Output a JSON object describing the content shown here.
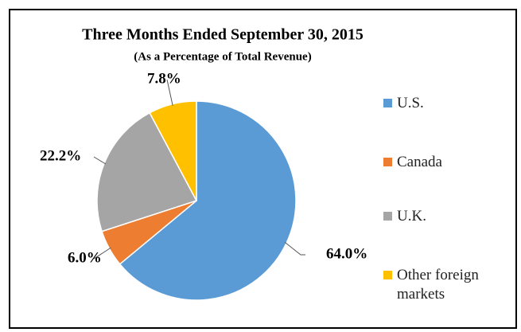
{
  "chart_data": {
    "type": "pie",
    "title": "Three Months Ended  September 30, 2015",
    "subtitle": "(As a Percentage of Total Revenue)",
    "categories": [
      "U.S.",
      "Canada",
      "U.K.",
      "Other foreign markets"
    ],
    "values": [
      64.0,
      6.0,
      22.2,
      7.8
    ],
    "value_labels": [
      "64.0%",
      "6.0%",
      "22.2%",
      "7.8%"
    ],
    "colors": [
      "#5b9bd5",
      "#ed7d31",
      "#a5a5a5",
      "#ffc000"
    ],
    "legend": "right"
  }
}
